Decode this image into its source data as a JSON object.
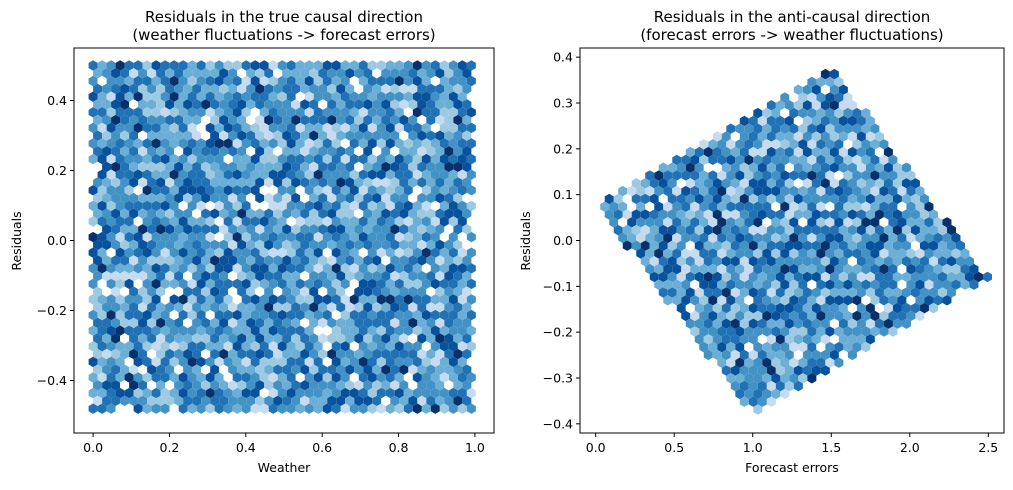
{
  "chart_data": [
    {
      "type": "hexbin",
      "title": "Residuals in the true causal direction\n(weather fluctuations -> forecast errors)",
      "xlabel": "Weather",
      "ylabel": "Residuals",
      "xlim": [
        -0.05,
        1.05
      ],
      "ylim": [
        -0.55,
        0.55
      ],
      "xticks": [
        0.0,
        0.2,
        0.4,
        0.6,
        0.8,
        1.0
      ],
      "xtick_labels": [
        "0.0",
        "0.2",
        "0.4",
        "0.6",
        "0.8",
        "1.0"
      ],
      "yticks": [
        -0.4,
        -0.2,
        0.0,
        0.2,
        0.4
      ],
      "ytick_labels": [
        "−0.4",
        "−0.2",
        "0.0",
        "0.2",
        "0.4"
      ],
      "colormap": "Blues",
      "grid": false,
      "region": {
        "x": [
          0.0,
          1.0
        ],
        "y": [
          -0.5,
          0.5
        ]
      },
      "polygon": [
        [
          0.0,
          -0.5
        ],
        [
          1.0,
          -0.5
        ],
        [
          1.0,
          0.5
        ],
        [
          0.0,
          0.5
        ]
      ]
    },
    {
      "type": "hexbin",
      "title": "Residuals in the anti-causal direction\n(forecast errors -> weather fluctuations)",
      "xlabel": "Forecast errors",
      "ylabel": "Residuals",
      "xlim": [
        -0.1,
        2.6
      ],
      "ylim": [
        -0.42,
        0.42
      ],
      "xticks": [
        0.0,
        0.5,
        1.0,
        1.5,
        2.0,
        2.5
      ],
      "xtick_labels": [
        "0.0",
        "0.5",
        "1.0",
        "1.5",
        "2.0",
        "2.5"
      ],
      "yticks": [
        -0.4,
        -0.3,
        -0.2,
        -0.1,
        0.0,
        0.1,
        0.2,
        0.3,
        0.4
      ],
      "ytick_labels": [
        "−0.4",
        "−0.3",
        "−0.2",
        "−0.1",
        "0.0",
        "0.1",
        "0.2",
        "0.3",
        "0.4"
      ],
      "colormap": "Blues",
      "grid": false,
      "polygon": [
        [
          0.0,
          0.08
        ],
        [
          1.0,
          -0.38
        ],
        [
          2.5,
          -0.08
        ],
        [
          1.5,
          0.38
        ]
      ]
    }
  ],
  "colors": {
    "blues_scale": [
      "#f7fbff",
      "#c6dbef",
      "#9ecae1",
      "#6baed6",
      "#4292c6",
      "#2171b5",
      "#08519c",
      "#08306b"
    ]
  }
}
